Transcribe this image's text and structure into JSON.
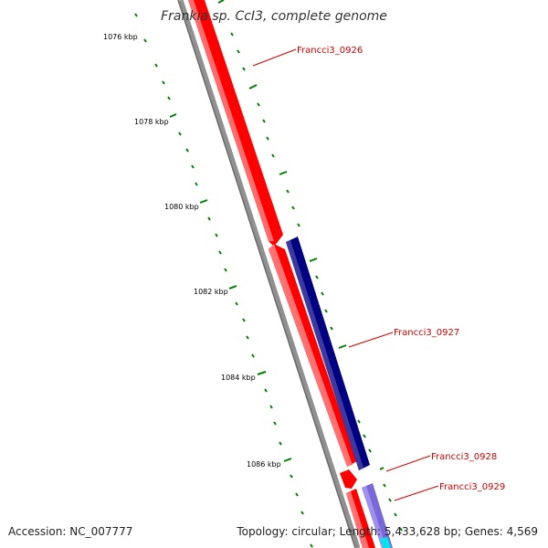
{
  "map": {
    "title": "Frankia sp. CcI3, complete genome",
    "accession": "Accession: NC_007777",
    "summary": "Topology: circular; Length: 5,433,628 bp; Genes: 4,569"
  },
  "tick_labels": [
    "1076 kbp",
    "1078 kbp",
    "1080 kbp",
    "1082 kbp",
    "1084 kbp",
    "1086 kbp"
  ],
  "gene_labels": [
    "Francci3_0926",
    "Francci3_0927",
    "Francci3_0928",
    "Francci3_0929"
  ],
  "colors": {
    "forward_cds": "#ff0000",
    "reverse_cds": "#000080",
    "other_feature": "#7b68d8",
    "backbone": "#808080",
    "tick_marks": "#008000",
    "gene_label_text": "#cc0000"
  }
}
